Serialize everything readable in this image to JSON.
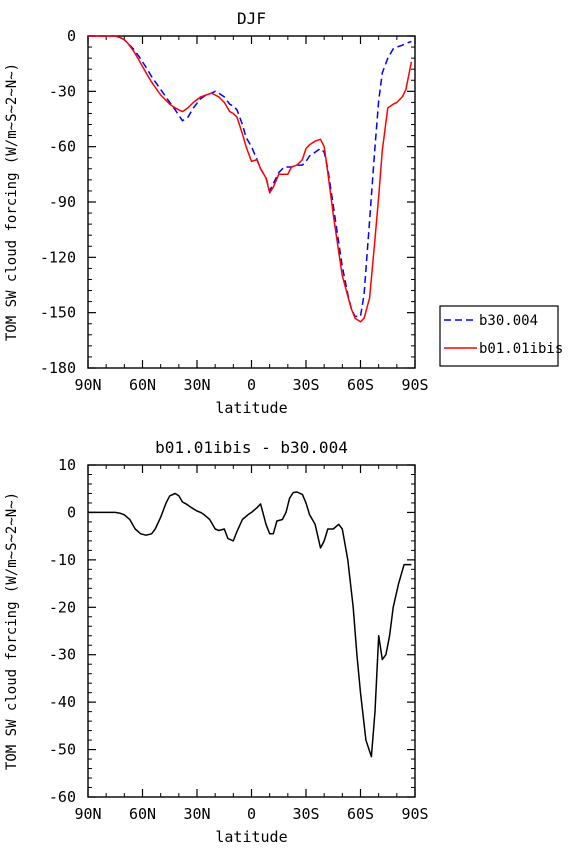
{
  "chart_data": [
    {
      "type": "line",
      "title": "DJF",
      "xlabel": "latitude",
      "ylabel": "TOM SW cloud forcing (W/m~S~2~N~)",
      "xlim": [
        90,
        -90
      ],
      "ylim": [
        -180,
        0
      ],
      "xticks": [
        90,
        60,
        30,
        0,
        -30,
        -60,
        -90
      ],
      "xtick_labels": [
        "90N",
        "60N",
        "30N",
        "0",
        "30S",
        "60S",
        "90S"
      ],
      "yticks": [
        0,
        -30,
        -60,
        -90,
        -120,
        -150,
        -180
      ],
      "ytick_labels": [
        "0",
        "-30",
        "-60",
        "-90",
        "-120",
        "-150",
        "-180"
      ],
      "grid": false,
      "legend_position": "right",
      "series": [
        {
          "name": "b30.004",
          "color": "#0000ff",
          "dash": "dashed",
          "x": [
            90,
            85,
            80,
            75,
            72,
            70,
            68,
            65,
            62,
            58,
            55,
            50,
            45,
            42,
            40,
            38,
            35,
            32,
            28,
            25,
            22,
            20,
            18,
            15,
            12,
            10,
            8,
            5,
            3,
            0,
            -3,
            -5,
            -8,
            -10,
            -12,
            -15,
            -18,
            -20,
            -22,
            -25,
            -28,
            -30,
            -32,
            -35,
            -38,
            -40,
            -42,
            -45,
            -48,
            -50,
            -53,
            -55,
            -57,
            -60,
            -62,
            -65,
            -68,
            -70,
            -72,
            -75,
            -78,
            -80,
            -83,
            -85,
            -88
          ],
          "y": [
            0,
            0,
            0,
            0,
            -1,
            -2,
            -4,
            -7,
            -11,
            -17,
            -22,
            -29,
            -36,
            -40,
            -43,
            -46,
            -44,
            -39,
            -34,
            -32,
            -31,
            -30,
            -31,
            -33,
            -37,
            -38,
            -40,
            -48,
            -55,
            -60,
            -67,
            -72,
            -77,
            -84,
            -80,
            -74,
            -71,
            -71,
            -71,
            -70,
            -70,
            -68,
            -65,
            -63,
            -61,
            -63,
            -72,
            -92,
            -112,
            -125,
            -140,
            -148,
            -152,
            -152,
            -140,
            -100,
            -60,
            -35,
            -20,
            -12,
            -7,
            -6,
            -5,
            -4,
            -3
          ]
        },
        {
          "name": "b01.01ibis",
          "color": "#ff0000",
          "dash": "solid",
          "x": [
            90,
            85,
            80,
            75,
            72,
            70,
            68,
            65,
            62,
            58,
            55,
            50,
            45,
            42,
            40,
            38,
            35,
            32,
            28,
            25,
            22,
            20,
            18,
            15,
            12,
            10,
            8,
            5,
            3,
            0,
            -3,
            -5,
            -8,
            -10,
            -12,
            -15,
            -18,
            -20,
            -22,
            -25,
            -28,
            -30,
            -32,
            -35,
            -38,
            -40,
            -42,
            -45,
            -48,
            -50,
            -53,
            -55,
            -57,
            -60,
            -62,
            -65,
            -68,
            -70,
            -72,
            -75,
            -78,
            -80,
            -83,
            -85,
            -88
          ],
          "y": [
            0,
            0,
            0,
            0,
            -1,
            -2,
            -4,
            -8,
            -13,
            -20,
            -25,
            -32,
            -37,
            -39,
            -40,
            -41,
            -39,
            -36,
            -33,
            -32,
            -31,
            -32,
            -33,
            -36,
            -41,
            -42,
            -44,
            -53,
            -60,
            -68,
            -67,
            -72,
            -77,
            -85,
            -82,
            -75,
            -75,
            -75,
            -71,
            -70,
            -67,
            -61,
            -59,
            -57,
            -56,
            -60,
            -74,
            -97,
            -117,
            -130,
            -141,
            -148,
            -153,
            -155,
            -153,
            -142,
            -110,
            -87,
            -62,
            -39,
            -37,
            -36,
            -33,
            -29,
            -14
          ]
        }
      ]
    },
    {
      "type": "line",
      "title": "b01.01ibis - b30.004",
      "xlabel": "latitude",
      "ylabel": "TOM SW cloud forcing (W/m~S~2~N~)",
      "xlim": [
        90,
        -90
      ],
      "ylim": [
        -60,
        10
      ],
      "xticks": [
        90,
        60,
        30,
        0,
        -30,
        -60,
        -90
      ],
      "xtick_labels": [
        "90N",
        "60N",
        "30N",
        "0",
        "30S",
        "60S",
        "90S"
      ],
      "yticks": [
        10,
        0,
        -10,
        -20,
        -30,
        -40,
        -50,
        -60
      ],
      "ytick_labels": [
        "10",
        "0",
        "-10",
        "-20",
        "-30",
        "-40",
        "-50",
        "-60"
      ],
      "grid": false,
      "series": [
        {
          "color": "#000000",
          "dash": "solid",
          "x": [
            90,
            85,
            80,
            75,
            72,
            70,
            67,
            64,
            61,
            58,
            55,
            53,
            50,
            47,
            45,
            42,
            40,
            38,
            36,
            33,
            30,
            28,
            26,
            23,
            20,
            18,
            15,
            13,
            10,
            8,
            5,
            2,
            0,
            -3,
            -5,
            -8,
            -10,
            -12,
            -14,
            -17,
            -19,
            -21,
            -23,
            -25,
            -28,
            -30,
            -32,
            -35,
            -38,
            -40,
            -42,
            -45,
            -48,
            -50,
            -53,
            -56,
            -58,
            -60,
            -63,
            -66,
            -68,
            -70,
            -72,
            -74,
            -76,
            -78,
            -81,
            -84,
            -86,
            -88
          ],
          "y": [
            0,
            0,
            0,
            0,
            -0.2,
            -0.5,
            -1.5,
            -3.5,
            -4.5,
            -4.8,
            -4.5,
            -3.5,
            -1,
            2,
            3.5,
            4,
            3.5,
            2.2,
            1.8,
            1,
            0.3,
            0,
            -0.5,
            -1.5,
            -3.5,
            -3.8,
            -3.5,
            -5.5,
            -6,
            -4,
            -1.5,
            -0.5,
            0,
            1,
            1.8,
            -2.5,
            -4.5,
            -4.5,
            -1.8,
            -1.5,
            0,
            3,
            4.2,
            4.3,
            3.8,
            2,
            -0.5,
            -2.5,
            -7.5,
            -6,
            -3.5,
            -3.5,
            -2.5,
            -3.5,
            -10,
            -20,
            -30,
            -38,
            -48,
            -51.5,
            -42,
            -26,
            -31,
            -30,
            -26,
            -20,
            -15,
            -11,
            -11,
            -11
          ]
        }
      ]
    }
  ]
}
